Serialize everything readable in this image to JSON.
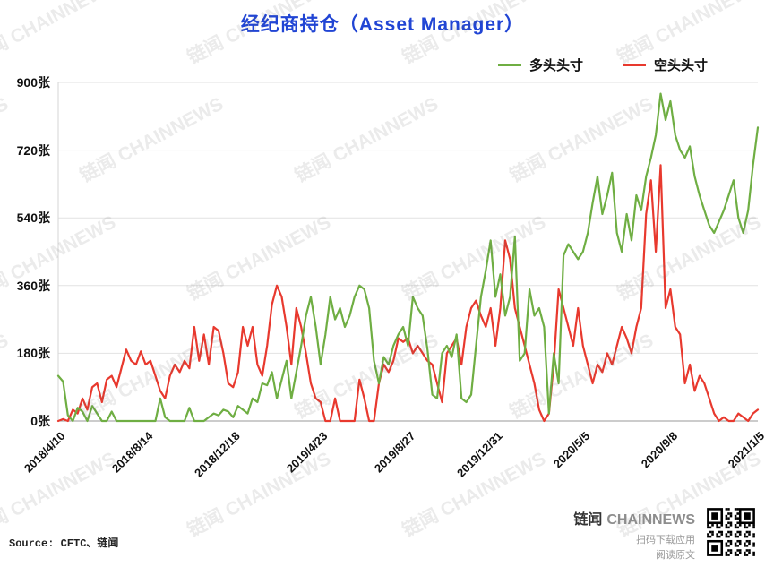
{
  "title": "经纪商持仓（Asset Manager）",
  "legend": {
    "long": {
      "label": "多头头寸",
      "color": "#6fae43"
    },
    "short": {
      "label": "空头头寸",
      "color": "#e8392e"
    }
  },
  "watermark": {
    "text": "链闻 CHAINNEWS"
  },
  "footer": {
    "source": "Source: CFTC、链闻",
    "brand_cn": "链闻",
    "brand_en": "CHAINNEWS",
    "qr_caption_download": "扫码下载应用",
    "qr_caption_read": "阅读原文"
  },
  "chart_data": {
    "type": "line",
    "title": "经纪商持仓（Asset Manager）",
    "unit": "张",
    "x_tick_labels": [
      "2018/4/10",
      "2018/8/14",
      "2018/12/18",
      "2019/4/23",
      "2019/8/27",
      "2019/12/31",
      "2020/5/5",
      "2020/9/8",
      "2021/1/5"
    ],
    "x_tick_interval": 18,
    "y_tick_labels": [
      "0张",
      "180张",
      "360张",
      "540张",
      "720张",
      "900张"
    ],
    "ylim": [
      0,
      900
    ],
    "grid": "horizontal",
    "legend_position": "top-right",
    "series": [
      {
        "name": "多头头寸",
        "color": "#6fae43",
        "values": [
          120,
          105,
          15,
          0,
          35,
          25,
          0,
          40,
          20,
          0,
          0,
          25,
          0,
          0,
          0,
          0,
          0,
          0,
          0,
          0,
          0,
          60,
          10,
          0,
          0,
          0,
          0,
          35,
          0,
          0,
          0,
          10,
          20,
          15,
          30,
          25,
          10,
          40,
          30,
          20,
          60,
          50,
          100,
          95,
          130,
          60,
          110,
          160,
          60,
          130,
          200,
          280,
          330,
          250,
          150,
          230,
          330,
          270,
          300,
          250,
          280,
          330,
          360,
          350,
          300,
          160,
          100,
          170,
          150,
          200,
          230,
          250,
          200,
          330,
          300,
          280,
          190,
          70,
          60,
          180,
          200,
          170,
          230,
          60,
          50,
          70,
          200,
          330,
          400,
          480,
          330,
          390,
          280,
          330,
          490,
          160,
          180,
          350,
          280,
          300,
          250,
          20,
          180,
          100,
          440,
          470,
          450,
          430,
          450,
          500,
          580,
          650,
          550,
          600,
          660,
          500,
          450,
          550,
          480,
          600,
          560,
          650,
          700,
          760,
          870,
          800,
          850,
          760,
          720,
          700,
          730,
          650,
          600,
          560,
          520,
          500,
          530,
          560,
          600,
          640,
          540,
          500,
          560,
          680,
          780
        ]
      },
      {
        "name": "空头头寸",
        "color": "#e8392e",
        "values": [
          0,
          5,
          0,
          30,
          20,
          60,
          30,
          90,
          100,
          50,
          110,
          120,
          90,
          140,
          190,
          160,
          150,
          185,
          150,
          160,
          120,
          80,
          60,
          120,
          150,
          130,
          160,
          140,
          250,
          160,
          230,
          150,
          250,
          240,
          180,
          100,
          90,
          130,
          250,
          200,
          250,
          150,
          120,
          200,
          310,
          360,
          330,
          250,
          150,
          300,
          250,
          180,
          100,
          60,
          50,
          0,
          0,
          60,
          0,
          0,
          0,
          0,
          110,
          60,
          0,
          0,
          100,
          150,
          130,
          160,
          220,
          210,
          220,
          180,
          200,
          180,
          160,
          150,
          100,
          50,
          180,
          200,
          220,
          150,
          250,
          300,
          320,
          280,
          250,
          300,
          200,
          300,
          480,
          430,
          300,
          250,
          200,
          150,
          100,
          30,
          0,
          20,
          150,
          350,
          300,
          250,
          200,
          300,
          200,
          150,
          100,
          150,
          130,
          180,
          150,
          200,
          250,
          220,
          180,
          250,
          300,
          550,
          640,
          450,
          680,
          300,
          350,
          250,
          230,
          100,
          150,
          80,
          120,
          100,
          60,
          20,
          0,
          10,
          0,
          0,
          20,
          10,
          0,
          20,
          30
        ]
      }
    ]
  }
}
